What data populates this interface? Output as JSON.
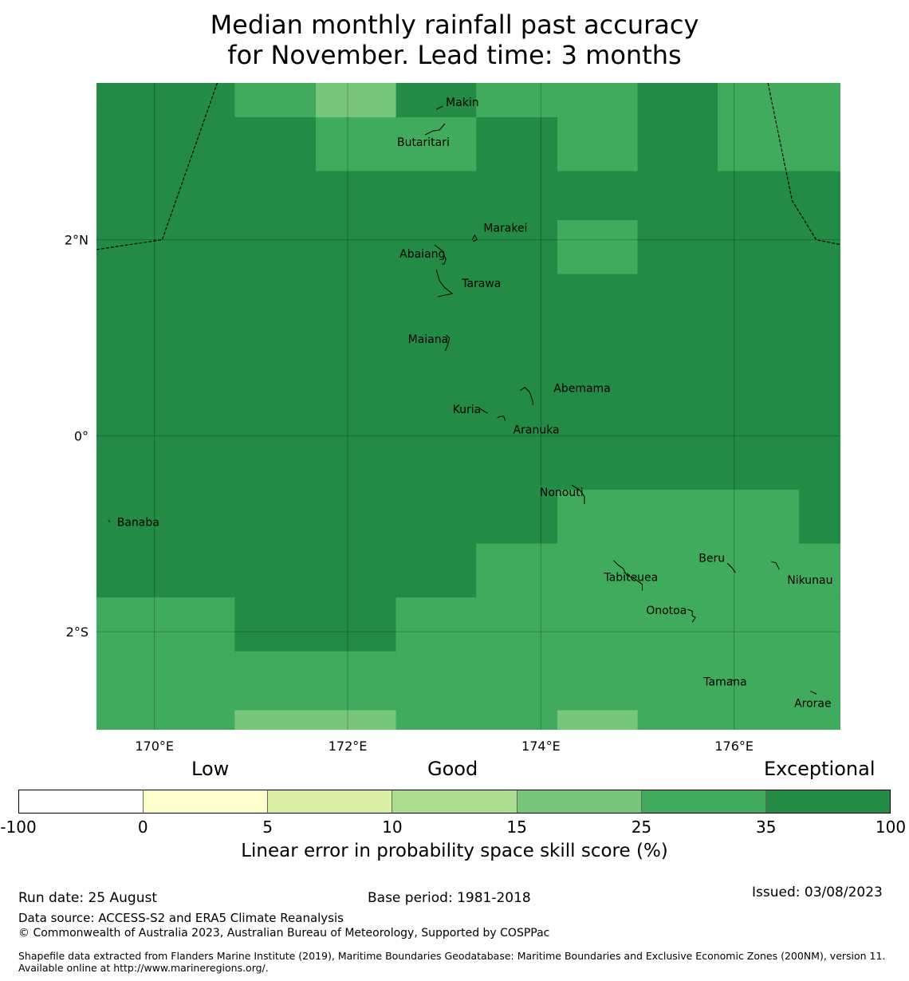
{
  "title_line1": "Median monthly rainfall past accuracy",
  "title_line2": "for November. Lead time: 3 months",
  "colors": {
    "exceptional": "#238b45",
    "skill_25_35": "#41ab5d",
    "skill_15_25": "#78c679",
    "skill_10_15": "#addd8e",
    "skill_5_10": "#d9f0a3",
    "skill_0_5": "#ffffcc",
    "skill_neg": "#ffffff"
  },
  "map": {
    "lon_range": [
      169.4,
      177.1
    ],
    "lat_range": [
      -3.0,
      3.6
    ],
    "lon_ticks": [
      {
        "value": 170,
        "label": "170°E"
      },
      {
        "value": 172,
        "label": "172°E"
      },
      {
        "value": 174,
        "label": "174°E"
      },
      {
        "value": 176,
        "label": "176°E"
      }
    ],
    "lat_ticks": [
      {
        "value": 2,
        "label": "2°N"
      },
      {
        "value": 0,
        "label": "0°"
      },
      {
        "value": -2,
        "label": "2°S"
      }
    ],
    "background_class": "exceptional",
    "cells": [
      {
        "lon": [
          170.83,
          171.67
        ],
        "lat": [
          3.25,
          3.6
        ],
        "class": "skill_25_35"
      },
      {
        "lon": [
          171.67,
          172.5
        ],
        "lat": [
          3.25,
          3.6
        ],
        "class": "skill_15_25"
      },
      {
        "lon": [
          171.67,
          173.33
        ],
        "lat": [
          2.7,
          3.25
        ],
        "class": "skill_25_35"
      },
      {
        "lon": [
          173.33,
          175.0
        ],
        "lat": [
          3.25,
          3.6
        ],
        "class": "skill_25_35"
      },
      {
        "lon": [
          174.17,
          175.0
        ],
        "lat": [
          2.7,
          3.25
        ],
        "class": "skill_25_35"
      },
      {
        "lon": [
          175.83,
          177.1
        ],
        "lat": [
          2.7,
          3.6
        ],
        "class": "skill_25_35"
      },
      {
        "lon": [
          174.17,
          175.0
        ],
        "lat": [
          1.65,
          2.2
        ],
        "class": "skill_25_35"
      },
      {
        "lon": [
          174.17,
          176.67
        ],
        "lat": [
          -1.1,
          -0.55
        ],
        "class": "skill_25_35"
      },
      {
        "lon": [
          173.33,
          177.1
        ],
        "lat": [
          -1.65,
          -1.1
        ],
        "class": "skill_25_35"
      },
      {
        "lon": [
          172.5,
          177.1
        ],
        "lat": [
          -3.0,
          -1.65
        ],
        "class": "skill_25_35"
      },
      {
        "lon": [
          169.4,
          170.83
        ],
        "lat": [
          -3.0,
          -1.65
        ],
        "class": "skill_25_35"
      },
      {
        "lon": [
          170.83,
          172.5
        ],
        "lat": [
          -3.0,
          -2.2
        ],
        "class": "skill_25_35"
      },
      {
        "lon": [
          170.83,
          172.5
        ],
        "lat": [
          -3.0,
          -2.8
        ],
        "class": "skill_15_25"
      },
      {
        "lon": [
          174.17,
          175.0
        ],
        "lat": [
          -3.0,
          -2.8
        ],
        "class": "skill_15_25"
      }
    ],
    "boundary_west": [
      [
        169.4,
        1.9
      ],
      [
        170.08,
        2.0
      ],
      [
        170.65,
        3.6
      ]
    ],
    "boundary_east": [
      [
        176.35,
        3.6
      ],
      [
        176.6,
        2.4
      ],
      [
        176.85,
        2.0
      ],
      [
        177.1,
        1.95
      ]
    ],
    "islands": [
      {
        "name": "Makin",
        "lon": 172.95,
        "lat": 3.33,
        "label_dx": 8,
        "label_dy": -4,
        "shape": [
          [
            -4,
            0
          ],
          [
            4,
            -4
          ]
        ]
      },
      {
        "name": "Butaritari",
        "lon": 172.8,
        "lat": 3.07,
        "label_dx": -35,
        "label_dy": 14,
        "shape": [
          [
            0,
            0
          ],
          [
            10,
            -5
          ],
          [
            18,
            -6
          ],
          [
            25,
            -14
          ]
        ]
      },
      {
        "name": "Marakei",
        "lon": 173.29,
        "lat": 2.0,
        "label_dx": 14,
        "label_dy": -10,
        "shape": [
          [
            0,
            0
          ],
          [
            3,
            -6
          ],
          [
            6,
            0
          ],
          [
            1,
            2
          ]
        ]
      },
      {
        "name": "Abaiang",
        "lon": 172.95,
        "lat": 1.85,
        "label_dx": -50,
        "label_dy": 4,
        "shape": [
          [
            -6,
            -12
          ],
          [
            4,
            -4
          ],
          [
            8,
            6
          ],
          [
            6,
            12
          ],
          [
            3,
            12
          ]
        ]
      },
      {
        "name": "Tarawa",
        "lon": 173.0,
        "lat": 1.45,
        "label_dx": 22,
        "label_dy": -8,
        "shape": [
          [
            -10,
            -30
          ],
          [
            -6,
            -16
          ],
          [
            0,
            -8
          ],
          [
            10,
            0
          ],
          [
            0,
            2
          ],
          [
            -8,
            4
          ]
        ]
      },
      {
        "name": "Maiana",
        "lon": 173.02,
        "lat": 0.98,
        "label_dx": -48,
        "label_dy": 4,
        "shape": [
          [
            0,
            -6
          ],
          [
            4,
            -2
          ],
          [
            2,
            6
          ],
          [
            -1,
            14
          ]
        ]
      },
      {
        "name": "Abemama",
        "lon": 173.9,
        "lat": 0.38,
        "label_dx": 28,
        "label_dy": -8,
        "shape": [
          [
            -14,
            -10
          ],
          [
            -8,
            -14
          ],
          [
            -2,
            -8
          ],
          [
            2,
            4
          ],
          [
            2,
            8
          ]
        ]
      },
      {
        "name": "Kuria",
        "lon": 173.4,
        "lat": 0.23,
        "label_dx": -38,
        "label_dy": 0,
        "shape": [
          [
            -4,
            -6
          ],
          [
            2,
            -2
          ],
          [
            6,
            0
          ]
        ]
      },
      {
        "name": "Aranuka",
        "lon": 173.63,
        "lat": 0.17,
        "label_dx": 10,
        "label_dy": 18,
        "shape": [
          [
            -10,
            -2
          ],
          [
            -2,
            -4
          ],
          [
            0,
            2
          ]
        ]
      },
      {
        "name": "Nonouti",
        "lon": 174.45,
        "lat": -0.65,
        "label_dx": -56,
        "label_dy": -4,
        "shape": [
          [
            -16,
            -18
          ],
          [
            -6,
            -12
          ],
          [
            0,
            -4
          ],
          [
            0,
            6
          ]
        ]
      },
      {
        "name": "Banaba",
        "lon": 169.53,
        "lat": -0.87,
        "label_dx": 10,
        "label_dy": 6,
        "shape": [
          [
            -1,
            -1
          ],
          [
            1,
            1
          ]
        ]
      },
      {
        "name": "Tabiteuea",
        "lon": 174.95,
        "lat": -1.5,
        "label_dx": -36,
        "label_dy": -2,
        "shape": [
          [
            -24,
            -28
          ],
          [
            -18,
            -22
          ],
          [
            -12,
            -18
          ],
          [
            -8,
            -10
          ],
          [
            4,
            -4
          ],
          [
            12,
            2
          ],
          [
            12,
            10
          ]
        ]
      },
      {
        "name": "Beru",
        "lon": 175.98,
        "lat": -1.35,
        "label_dx": -42,
        "label_dy": -8,
        "shape": [
          [
            -6,
            -6
          ],
          [
            0,
            0
          ],
          [
            4,
            6
          ]
        ]
      },
      {
        "name": "Nikunau",
        "lon": 176.45,
        "lat": -1.38,
        "label_dx": 12,
        "label_dy": 16,
        "shape": [
          [
            -8,
            -12
          ],
          [
            -2,
            -10
          ],
          [
            2,
            -2
          ]
        ]
      },
      {
        "name": "Onotoa",
        "lon": 175.55,
        "lat": -1.87,
        "label_dx": -56,
        "label_dy": -6,
        "shape": [
          [
            -4,
            -12
          ],
          [
            2,
            -10
          ],
          [
            2,
            -4
          ],
          [
            6,
            -2
          ],
          [
            2,
            4
          ]
        ]
      },
      {
        "name": "Tamana",
        "lon": 175.98,
        "lat": -2.5,
        "label_dx": -36,
        "label_dy": 6,
        "shape": [
          [
            -2,
            -2
          ],
          [
            2,
            0
          ]
        ]
      },
      {
        "name": "Arorae",
        "lon": 176.82,
        "lat": -2.62,
        "label_dx": -24,
        "label_dy": 18,
        "shape": [
          [
            -4,
            -2
          ],
          [
            4,
            2
          ]
        ]
      }
    ]
  },
  "colorbar": {
    "categories": [
      "Low",
      "Good",
      "Exceptional"
    ],
    "ticks": [
      "-100",
      "0",
      "5",
      "10",
      "15",
      "25",
      "35",
      "100"
    ],
    "segments": [
      "skill_neg",
      "skill_0_5",
      "skill_5_10",
      "skill_10_15",
      "skill_15_25",
      "skill_25_35",
      "exceptional"
    ],
    "label": "Linear error in probability space skill score (%)"
  },
  "footer": {
    "run_date": "Run date: 25 August",
    "base_period": "Base period: 1981-2018",
    "issued": "Issued: 03/08/2023",
    "data_source": "Data source: ACCESS-S2 and ERA5 Climate Reanalysis",
    "copyright": "© Commonwealth of Australia 2023, Australian Bureau of Meteorology, Supported by COSPPac",
    "shapefile": "Shapefile data extracted from Flanders Marine Institute (2019), Maritime Boundaries Geodatabase: Maritime Boundaries and Exclusive Economic Zones (200NM), version 11. Available online at http://www.marineregions.org/."
  }
}
